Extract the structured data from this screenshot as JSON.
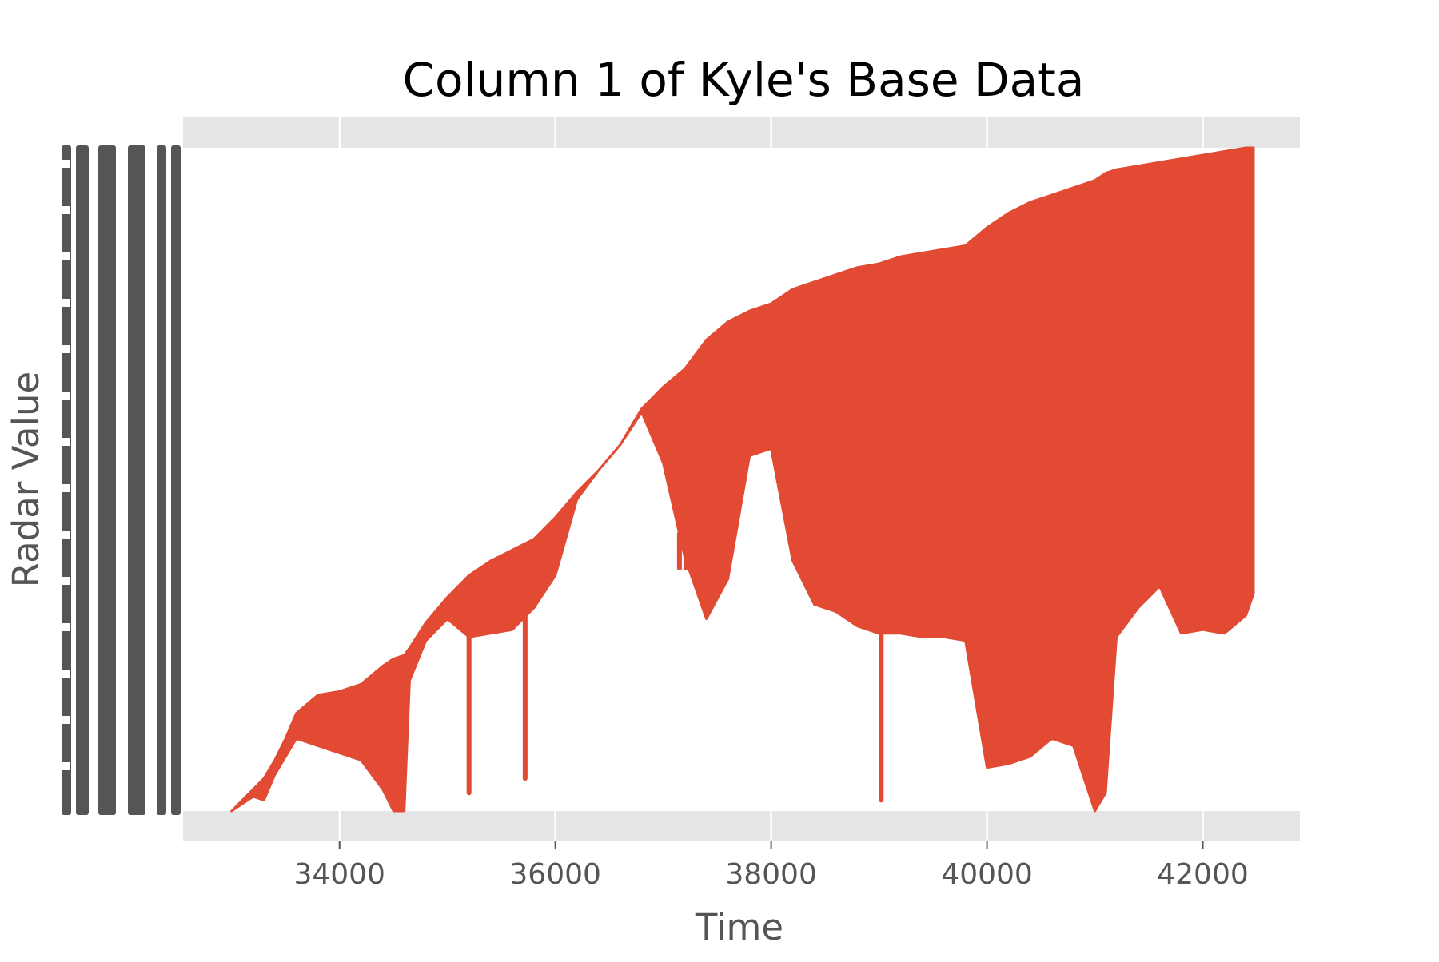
{
  "chart_data": {
    "type": "area",
    "title": "Column 1 of Kyle's Base Data",
    "xlabel": "Time",
    "ylabel": "Radar Value",
    "xlim": [
      32550,
      42900
    ],
    "x_ticks": [
      "34000",
      "36000",
      "38000",
      "40000",
      "42000"
    ],
    "y_tick_labels_legible": false,
    "grid": true,
    "legend": "none",
    "colors": {
      "series": "#E24A33",
      "panel": "#E5E5E5",
      "grid": "#FFFFFF",
      "tick_text": "#555555",
      "y_tick_smear": "#555555"
    },
    "series": [
      {
        "x": [
          33000,
          33100,
          33200,
          33300,
          33400,
          33500,
          33600,
          33800,
          34000,
          34200,
          34400,
          34500,
          34600,
          34650,
          34800,
          35000,
          35200,
          35400,
          35600,
          35800,
          36000,
          36200,
          36400,
          36600,
          36800,
          37000,
          37200,
          37400,
          37600,
          37800,
          38000,
          38200,
          38400,
          38600,
          38800,
          39000,
          39200,
          39400,
          39600,
          39800,
          40000,
          40200,
          40400,
          40600,
          40800,
          41000,
          41100,
          41200,
          41400,
          41600,
          41800,
          42000,
          42200,
          42400,
          42470
        ],
        "upper": [
          0.0,
          0.03,
          0.06,
          0.09,
          0.14,
          0.2,
          0.27,
          0.32,
          0.33,
          0.35,
          0.4,
          0.42,
          0.43,
          0.45,
          0.52,
          0.59,
          0.65,
          0.69,
          0.72,
          0.75,
          0.81,
          0.88,
          0.94,
          1.01,
          1.11,
          1.17,
          1.22,
          1.3,
          1.35,
          1.38,
          1.4,
          1.44,
          1.46,
          1.48,
          1.5,
          1.51,
          1.53,
          1.54,
          1.55,
          1.56,
          1.61,
          1.65,
          1.68,
          1.7,
          1.72,
          1.74,
          1.76,
          1.77,
          1.78,
          1.79,
          1.8,
          1.81,
          1.82,
          1.83,
          1.83
        ],
        "lower": [
          0.0,
          0.02,
          0.04,
          0.03,
          0.1,
          0.15,
          0.2,
          0.18,
          0.16,
          0.14,
          0.06,
          0.0,
          0.0,
          0.36,
          0.47,
          0.53,
          0.48,
          0.49,
          0.5,
          0.56,
          0.65,
          0.86,
          0.94,
          1.01,
          1.1,
          0.96,
          0.7,
          0.53,
          0.64,
          0.98,
          1.0,
          0.69,
          0.57,
          0.55,
          0.51,
          0.49,
          0.49,
          0.48,
          0.48,
          0.47,
          0.12,
          0.13,
          0.15,
          0.2,
          0.18,
          0.0,
          0.05,
          0.48,
          0.56,
          0.62,
          0.49,
          0.5,
          0.49,
          0.54,
          0.6
        ],
        "dips": [
          {
            "x": 35200,
            "y": 0.05
          },
          {
            "x": 35720,
            "y": 0.09
          },
          {
            "x": 37150,
            "y": 0.67
          },
          {
            "x": 37210,
            "y": 0.67
          },
          {
            "x": 39020,
            "y": 0.03
          }
        ]
      }
    ]
  }
}
